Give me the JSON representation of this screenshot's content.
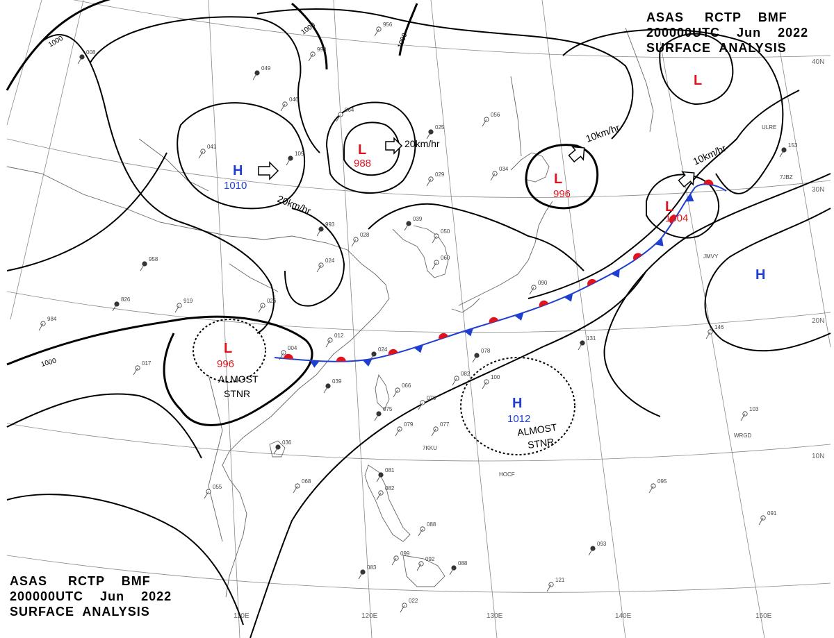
{
  "header": {
    "line1": "ASAS     RCTP    BMF",
    "line2": "200000UTC    Jun    2022",
    "line3": "SURFACE  ANALYSIS"
  },
  "grid_labels": {
    "lat": [
      "40N",
      "30N",
      "20N",
      "10N"
    ],
    "lon": [
      "110E",
      "120E",
      "130E",
      "140E",
      "150E"
    ]
  },
  "isobar_labels": [
    "1000",
    "1000",
    "1000",
    "1000"
  ],
  "systems": [
    {
      "type": "H",
      "pressure": "1010",
      "color": "#1f3fd0"
    },
    {
      "type": "L",
      "pressure": "988",
      "color": "#e0141e"
    },
    {
      "type": "L",
      "pressure": "996",
      "color": "#e0141e"
    },
    {
      "type": "L",
      "pressure": "1004",
      "color": "#e0141e"
    },
    {
      "type": "L",
      "pressure": "",
      "color": "#e0141e"
    },
    {
      "type": "H",
      "pressure": "",
      "color": "#1f3fd0"
    },
    {
      "type": "L",
      "pressure": "996",
      "color": "#e0141e"
    },
    {
      "type": "H",
      "pressure": "1012",
      "color": "#1f3fd0"
    }
  ],
  "motions": [
    "20km/hr",
    "20km/hr",
    "10km/hr",
    "10km/hr"
  ],
  "stationary_notes": [
    {
      "line1": "ALMOST",
      "line2": "STNR"
    },
    {
      "line1": "ALMOST",
      "line2": "STNR"
    }
  ],
  "station_ids": [
    "ULRE",
    "7JBZ",
    "JMVY",
    "WRGD",
    "7KKU",
    "HOCF"
  ],
  "station_values": [
    "008",
    "956",
    "993",
    "049",
    "046",
    "064",
    "025",
    "056",
    "041",
    "109",
    "029",
    "034",
    "039",
    "050",
    "060",
    "993",
    "028",
    "024",
    "958",
    "919",
    "026",
    "826",
    "984",
    "012",
    "024",
    "004",
    "017",
    "039",
    "066",
    "070",
    "075",
    "079",
    "077",
    "078",
    "082",
    "100",
    "131",
    "146",
    "103",
    "036",
    "068",
    "055",
    "081",
    "082",
    "088",
    "083",
    "099",
    "092",
    "088",
    "095",
    "091",
    "093",
    "121",
    "022",
    "153",
    "090"
  ],
  "colors": {
    "isobar": "#000000",
    "coast": "#555555",
    "grid": "#888888",
    "warm_front": "#e0141e",
    "cold_front": "#1f3fd0"
  }
}
